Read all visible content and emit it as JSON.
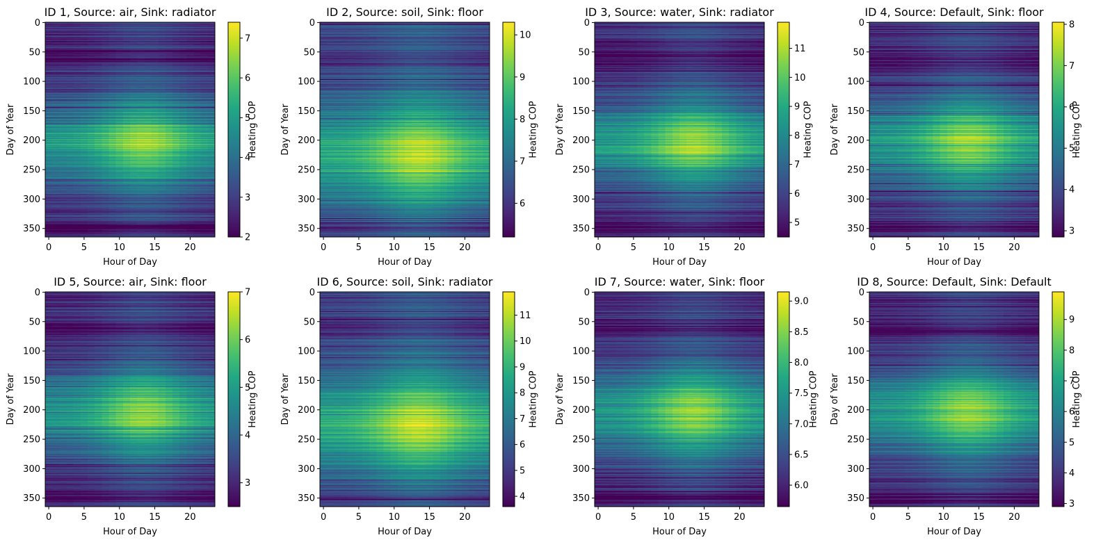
{
  "chart_data": [
    {
      "type": "heatmap",
      "title": "ID 1, Source: air, Sink: radiator",
      "xlabel": "Hour of Day",
      "ylabel": "Day of Year",
      "xticks": [
        0,
        5,
        10,
        15,
        20
      ],
      "yticks": [
        0,
        50,
        100,
        150,
        200,
        250,
        300,
        350
      ],
      "xlim": [
        -0.5,
        23.5
      ],
      "ylim": [
        364.5,
        -0.5
      ],
      "colorbar_label": "Heating COP",
      "colorbar_ticks": [
        2,
        3,
        4,
        5,
        6,
        7
      ],
      "vmin": 2.0,
      "vmax": 7.4,
      "colormap": "viridis"
    },
    {
      "type": "heatmap",
      "title": "ID 2, Source: soil, Sink: floor",
      "xlabel": "Hour of Day",
      "ylabel": "Day of Year",
      "xticks": [
        0,
        5,
        10,
        15,
        20
      ],
      "yticks": [
        0,
        50,
        100,
        150,
        200,
        250,
        300,
        350
      ],
      "xlim": [
        -0.5,
        23.5
      ],
      "ylim": [
        364.5,
        -0.5
      ],
      "colorbar_label": "Heating COP",
      "colorbar_ticks": [
        6,
        7,
        8,
        9,
        10
      ],
      "vmin": 5.2,
      "vmax": 10.3,
      "colormap": "viridis"
    },
    {
      "type": "heatmap",
      "title": "ID 3, Source: water, Sink: radiator",
      "xlabel": "Hour of Day",
      "ylabel": "Day of Year",
      "xticks": [
        0,
        5,
        10,
        15,
        20
      ],
      "yticks": [
        0,
        50,
        100,
        150,
        200,
        250,
        300,
        350
      ],
      "xlim": [
        -0.5,
        23.5
      ],
      "ylim": [
        364.5,
        -0.5
      ],
      "colorbar_label": "Heating COP",
      "colorbar_ticks": [
        5,
        6,
        7,
        8,
        9,
        10,
        11
      ],
      "vmin": 4.5,
      "vmax": 11.9,
      "colormap": "viridis"
    },
    {
      "type": "heatmap",
      "title": "ID 4, Source: Default, Sink: floor",
      "xlabel": "Hour of Day",
      "ylabel": "Day of Year",
      "xticks": [
        0,
        5,
        10,
        15,
        20
      ],
      "yticks": [
        0,
        50,
        100,
        150,
        200,
        250,
        300,
        350
      ],
      "xlim": [
        -0.5,
        23.5
      ],
      "ylim": [
        364.5,
        -0.5
      ],
      "colorbar_label": "Heating COP",
      "colorbar_ticks": [
        3,
        4,
        5,
        6,
        7,
        8
      ],
      "vmin": 2.85,
      "vmax": 8.05,
      "colormap": "viridis"
    },
    {
      "type": "heatmap",
      "title": "ID 5, Source: air, Sink: floor",
      "xlabel": "Hour of Day",
      "ylabel": "Day of Year",
      "xticks": [
        0,
        5,
        10,
        15,
        20
      ],
      "yticks": [
        0,
        50,
        100,
        150,
        200,
        250,
        300,
        350
      ],
      "xlim": [
        -0.5,
        23.5
      ],
      "ylim": [
        364.5,
        -0.5
      ],
      "colorbar_label": "Heating COP",
      "colorbar_ticks": [
        3,
        4,
        5,
        6,
        7
      ],
      "vmin": 2.5,
      "vmax": 7.0,
      "colormap": "viridis"
    },
    {
      "type": "heatmap",
      "title": "ID 6, Source: soil, Sink: radiator",
      "xlabel": "Hour of Day",
      "ylabel": "Day of Year",
      "xticks": [
        0,
        5,
        10,
        15,
        20
      ],
      "yticks": [
        0,
        50,
        100,
        150,
        200,
        250,
        300,
        350
      ],
      "xlim": [
        -0.5,
        23.5
      ],
      "ylim": [
        364.5,
        -0.5
      ],
      "colorbar_label": "Heating COP",
      "colorbar_ticks": [
        4,
        5,
        6,
        7,
        8,
        9,
        10,
        11
      ],
      "vmin": 3.6,
      "vmax": 11.9,
      "colormap": "viridis"
    },
    {
      "type": "heatmap",
      "title": "ID 7, Source: water, Sink: floor",
      "xlabel": "Hour of Day",
      "ylabel": "Day of Year",
      "xticks": [
        0,
        5,
        10,
        15,
        20
      ],
      "yticks": [
        0,
        50,
        100,
        150,
        200,
        250,
        300,
        350
      ],
      "xlim": [
        -0.5,
        23.5
      ],
      "ylim": [
        364.5,
        -0.5
      ],
      "colorbar_label": "Heating COP",
      "colorbar_ticks": [
        "6.0",
        "6.5",
        "7.0",
        "7.5",
        "8.0",
        "8.5",
        "9.0"
      ],
      "vmin": 5.65,
      "vmax": 9.15,
      "colormap": "viridis"
    },
    {
      "type": "heatmap",
      "title": "ID 8, Source: Default, Sink: Default",
      "xlabel": "Hour of Day",
      "ylabel": "Day of Year",
      "xticks": [
        0,
        5,
        10,
        15,
        20
      ],
      "yticks": [
        0,
        50,
        100,
        150,
        200,
        250,
        300,
        350
      ],
      "xlim": [
        -0.5,
        23.5
      ],
      "ylim": [
        364.5,
        -0.5
      ],
      "colorbar_label": "Heating COP",
      "colorbar_ticks": [
        3,
        4,
        5,
        6,
        7,
        8,
        9
      ],
      "vmin": 2.9,
      "vmax": 9.9,
      "colormap": "viridis"
    }
  ]
}
